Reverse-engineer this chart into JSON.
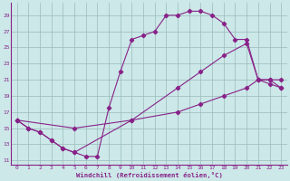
{
  "bg_color": "#cce8e8",
  "grid_color": "#99bbbb",
  "line_color": "#882288",
  "xlim": [
    -0.5,
    23.5
  ],
  "ylim": [
    10.5,
    30.5
  ],
  "xticks": [
    0,
    1,
    2,
    3,
    4,
    5,
    6,
    7,
    8,
    9,
    10,
    11,
    12,
    13,
    14,
    15,
    16,
    17,
    18,
    19,
    20,
    21,
    22,
    23
  ],
  "yticks": [
    11,
    13,
    15,
    17,
    19,
    21,
    23,
    25,
    27,
    29
  ],
  "xlabel": "Windchill (Refroidissement éolien,°C)",
  "series1_x": [
    0,
    1,
    2,
    3,
    4,
    5,
    6,
    7,
    8,
    9,
    10,
    11,
    12,
    13,
    14,
    15,
    16,
    17,
    18,
    19,
    20,
    21,
    22,
    23
  ],
  "series1_y": [
    16,
    15,
    14.5,
    13.5,
    12.5,
    12,
    11.5,
    11.5,
    17.5,
    22,
    26,
    26.5,
    27,
    29,
    29,
    29.5,
    29.5,
    29,
    28,
    26,
    26,
    21,
    21,
    21
  ],
  "series2_x": [
    0,
    1,
    2,
    3,
    4,
    5,
    10,
    14,
    16,
    18,
    20,
    21,
    22,
    23
  ],
  "series2_y": [
    16,
    15,
    14.5,
    13.5,
    12.5,
    12,
    16,
    17,
    18,
    19,
    20,
    21,
    20.5,
    20
  ],
  "series3_x": [
    0,
    5,
    10,
    14,
    16,
    18,
    20,
    21,
    22,
    23
  ],
  "series3_y": [
    16,
    15,
    16,
    20,
    22,
    24,
    25.5,
    21,
    21,
    20
  ]
}
